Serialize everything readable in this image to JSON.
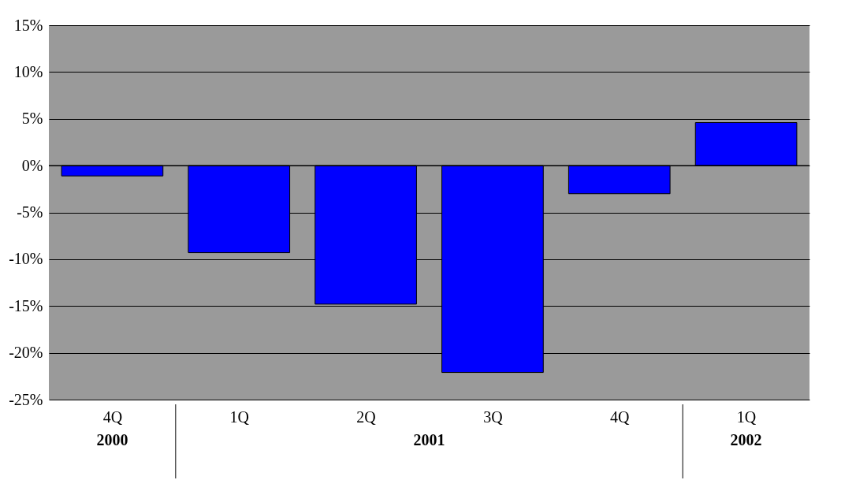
{
  "chart_data": {
    "type": "bar",
    "categories": [
      "4Q",
      "1Q",
      "2Q",
      "3Q",
      "4Q",
      "1Q"
    ],
    "values": [
      -1.1,
      -9.3,
      -14.8,
      -22.1,
      -3.0,
      4.6
    ],
    "color": "#0000ff",
    "ylim": [
      -25,
      15
    ],
    "yticks": [
      {
        "value": -25,
        "label": "-25%"
      },
      {
        "value": -20,
        "label": "-20%"
      },
      {
        "value": -15,
        "label": "-15%"
      },
      {
        "value": -10,
        "label": "-10%"
      },
      {
        "value": -5,
        "label": "-5%"
      },
      {
        "value": 0,
        "label": "0%"
      },
      {
        "value": 5,
        "label": "5%"
      },
      {
        "value": 10,
        "label": "10%"
      },
      {
        "value": 15,
        "label": "15%"
      }
    ],
    "grid": "y",
    "annotations": [
      "2000",
      "2001",
      "2002"
    ]
  }
}
